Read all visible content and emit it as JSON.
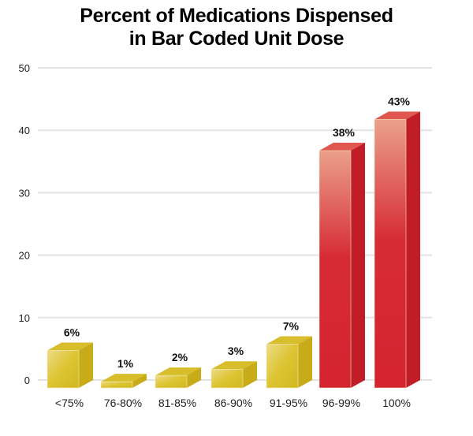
{
  "chart_data": {
    "type": "bar",
    "title_lines": [
      "Percent of Medications Dispensed",
      "in Bar Coded Unit Dose"
    ],
    "categories": [
      "<75%",
      "76-80%",
      "81-85%",
      "86-90%",
      "91-95%",
      "96-99%",
      "100%"
    ],
    "values": [
      6,
      1,
      2,
      3,
      7,
      38,
      43
    ],
    "data_labels": [
      "6%",
      "1%",
      "2%",
      "3%",
      "7%",
      "38%",
      "43%"
    ],
    "yticks": [
      0,
      10,
      20,
      30,
      40,
      50
    ],
    "ylim": [
      0,
      50
    ],
    "grid": true,
    "style": "3d-bar",
    "colors": {
      "low": "#d6bd24",
      "high": "#d42430"
    },
    "bar_colors": [
      "low",
      "low",
      "low",
      "low",
      "low",
      "high",
      "high"
    ]
  }
}
